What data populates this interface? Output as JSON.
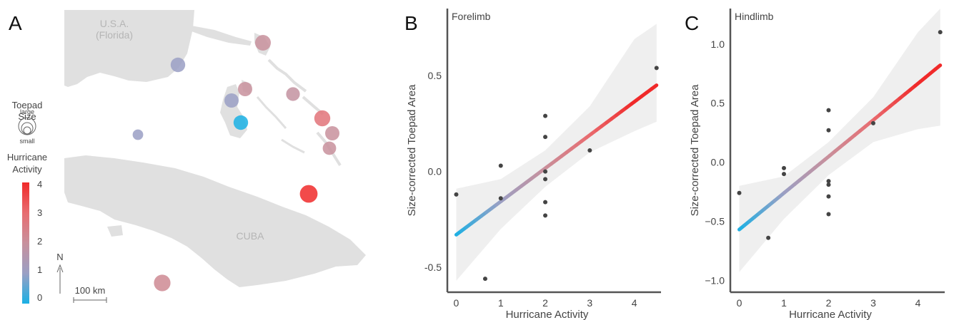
{
  "panel_letters": [
    "A",
    "B",
    "C"
  ],
  "map": {
    "label_usa_1": "U.S.A.",
    "label_usa_2": "(Florida)",
    "label_cuba": "CUBA",
    "scale_label": "100 km",
    "north_label": "N",
    "land_color": "#e0e0e0",
    "size_legend_title_1": "Toepad",
    "size_legend_title_2": "Size",
    "size_legend_large": "large",
    "size_legend_small": "small",
    "color_legend_title_1": "Hurricane",
    "color_legend_title_2": "Activity",
    "color_legend_ticks": [
      "0",
      "1",
      "2",
      "3",
      "4"
    ],
    "color_scale": [
      "#1ab0e4",
      "#9a9fc4",
      "#c8909c",
      "#e86c70",
      "#f02a2a"
    ]
  },
  "chart_data": [
    {
      "type": "scatter",
      "title": "Forelimb",
      "xlabel": "Hurricane Activity",
      "ylabel": "Size-corrected Toepad Area",
      "xlim": [
        -0.2,
        4.6
      ],
      "ylim": [
        -0.63,
        0.85
      ],
      "xticks": [
        "0",
        "1",
        "2",
        "3",
        "4"
      ],
      "yticks": [
        "-0.5",
        "0.0",
        "0.5"
      ],
      "points": [
        {
          "x": 0,
          "y": -0.12
        },
        {
          "x": 0.65,
          "y": -0.56
        },
        {
          "x": 1,
          "y": 0.03
        },
        {
          "x": 1,
          "y": -0.14
        },
        {
          "x": 2,
          "y": 0.29
        },
        {
          "x": 2,
          "y": 0.18
        },
        {
          "x": 2,
          "y": 0.0
        },
        {
          "x": 2,
          "y": -0.04
        },
        {
          "x": 2,
          "y": -0.16
        },
        {
          "x": 2,
          "y": -0.23
        },
        {
          "x": 3,
          "y": 0.11
        },
        {
          "x": 4.5,
          "y": 0.54
        }
      ],
      "fit_line": {
        "x": [
          0,
          4.5
        ],
        "y": [
          -0.33,
          0.45
        ]
      },
      "confidence_band": {
        "x": [
          0,
          1,
          2,
          3,
          4,
          4.5
        ],
        "lower": [
          -0.57,
          -0.3,
          -0.08,
          0.1,
          0.21,
          0.26
        ],
        "upper": [
          -0.09,
          -0.04,
          0.11,
          0.34,
          0.69,
          0.77
        ]
      }
    },
    {
      "type": "scatter",
      "title": "Hindlimb",
      "xlabel": "Hurricane Activity",
      "ylabel": "Size-corrected Toepad Area",
      "xlim": [
        -0.2,
        4.6
      ],
      "ylim": [
        -1.1,
        1.3
      ],
      "xticks": [
        "0",
        "1",
        "2",
        "3",
        "4"
      ],
      "yticks": [
        "−1.0",
        "−0.5",
        "0.0",
        "0.5",
        "1.0"
      ],
      "points": [
        {
          "x": 0,
          "y": -0.26
        },
        {
          "x": 0.65,
          "y": -0.64
        },
        {
          "x": 1,
          "y": -0.05
        },
        {
          "x": 1,
          "y": -0.1
        },
        {
          "x": 2,
          "y": 0.44
        },
        {
          "x": 2,
          "y": 0.27
        },
        {
          "x": 2,
          "y": -0.16
        },
        {
          "x": 2,
          "y": -0.19
        },
        {
          "x": 2,
          "y": -0.29
        },
        {
          "x": 2,
          "y": -0.44
        },
        {
          "x": 3,
          "y": 0.33
        },
        {
          "x": 4.5,
          "y": 1.1
        }
      ],
      "fit_line": {
        "x": [
          0,
          4.5
        ],
        "y": [
          -0.57,
          0.82
        ]
      },
      "confidence_band": {
        "x": [
          0,
          1,
          2,
          3,
          4,
          4.5
        ],
        "lower": [
          -0.93,
          -0.48,
          -0.11,
          0.17,
          0.28,
          0.31
        ],
        "upper": [
          -0.2,
          -0.12,
          0.17,
          0.55,
          1.1,
          1.3
        ]
      }
    }
  ],
  "sites": [
    {
      "activity": 2.0,
      "size": 0.58
    },
    {
      "activity": 1.0,
      "size": 0.52
    },
    {
      "activity": 2.0,
      "size": 0.5
    },
    {
      "activity": 1.0,
      "size": 0.5
    },
    {
      "activity": 1.9,
      "size": 0.47
    },
    {
      "activity": 0.0,
      "size": 0.52
    },
    {
      "activity": 1.0,
      "size": 0.28
    },
    {
      "activity": 2.8,
      "size": 0.6
    },
    {
      "activity": 2.0,
      "size": 0.5
    },
    {
      "activity": 2.0,
      "size": 0.45
    },
    {
      "activity": 4.0,
      "size": 0.7
    },
    {
      "activity": 2.2,
      "size": 0.63
    }
  ]
}
